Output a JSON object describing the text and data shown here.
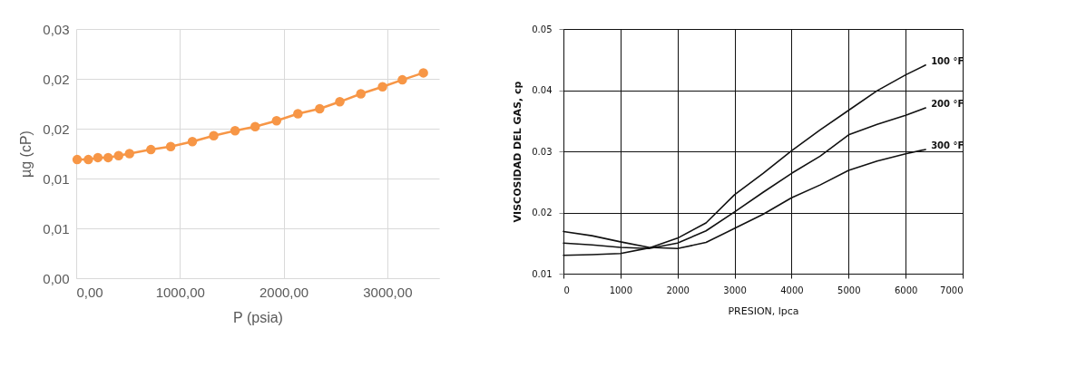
{
  "chart_data": [
    {
      "type": "line",
      "xlabel": "P (psia)",
      "ylabel": "µg (cP)",
      "marker": "circle",
      "line_style": "solid",
      "grid": true,
      "xlim": [
        0,
        3500
      ],
      "ylim": [
        0,
        0.025
      ],
      "xticks": [
        {
          "value": 0,
          "label": "0,00"
        },
        {
          "value": 1000,
          "label": "1000,00"
        },
        {
          "value": 2000,
          "label": "2000,00"
        },
        {
          "value": 3000,
          "label": "3000,00"
        }
      ],
      "yticks": [
        {
          "value": 0,
          "label": "0,00"
        },
        {
          "value": 0.005,
          "label": "0,01"
        },
        {
          "value": 0.01,
          "label": "0,01"
        },
        {
          "value": 0.015,
          "label": "0,02"
        },
        {
          "value": 0.02,
          "label": "0,02"
        },
        {
          "value": 0.025,
          "label": "0,03"
        }
      ],
      "x": [
        9,
        117,
        209,
        308,
        409,
        514,
        720,
        911,
        1120,
        1326,
        1532,
        1726,
        1932,
        2138,
        2348,
        2542,
        2745,
        2954,
        3145,
        3348
      ],
      "series": [
        {
          "color": "#f79646",
          "values": [
            0.0119,
            0.0119,
            0.0121,
            0.0121,
            0.0123,
            0.0125,
            0.0129,
            0.0132,
            0.0137,
            0.0143,
            0.0148,
            0.0152,
            0.0158,
            0.0165,
            0.017,
            0.0177,
            0.0185,
            0.0192,
            0.0199,
            0.0206
          ]
        }
      ]
    },
    {
      "type": "line",
      "xlabel": "PRESION, lpca",
      "ylabel": "VISCOSIDAD DEL GAS, cp",
      "line_style": "solid",
      "grid": true,
      "xlim": [
        0,
        7000
      ],
      "ylim": [
        0.01,
        0.05
      ],
      "xticks": [
        0,
        1000,
        2000,
        3000,
        4000,
        5000,
        6000,
        7000
      ],
      "yticks": [
        0.01,
        0.02,
        0.03,
        0.04,
        0.05
      ],
      "x": [
        0,
        500,
        1000,
        1500,
        2000,
        2500,
        3000,
        3500,
        4000,
        4500,
        5000,
        5500,
        6000,
        6350
      ],
      "series": [
        {
          "name": "100 °F",
          "color": "#111111",
          "values": [
            0.013,
            0.0131,
            0.0133,
            0.0142,
            0.0158,
            0.0183,
            0.0229,
            0.0264,
            0.0301,
            0.0335,
            0.0367,
            0.0399,
            0.0425,
            0.0441
          ]
        },
        {
          "name": "200 °F",
          "color": "#111111",
          "values": [
            0.015,
            0.0147,
            0.0143,
            0.0141,
            0.015,
            0.017,
            0.0201,
            0.0233,
            0.0264,
            0.0292,
            0.0327,
            0.0344,
            0.0359,
            0.0371
          ]
        },
        {
          "name": "300 °F",
          "color": "#111111",
          "values": [
            0.0169,
            0.0162,
            0.0152,
            0.0143,
            0.0141,
            0.0151,
            0.0174,
            0.0197,
            0.0224,
            0.0245,
            0.0269,
            0.0284,
            0.0296,
            0.0303
          ]
        }
      ]
    }
  ]
}
